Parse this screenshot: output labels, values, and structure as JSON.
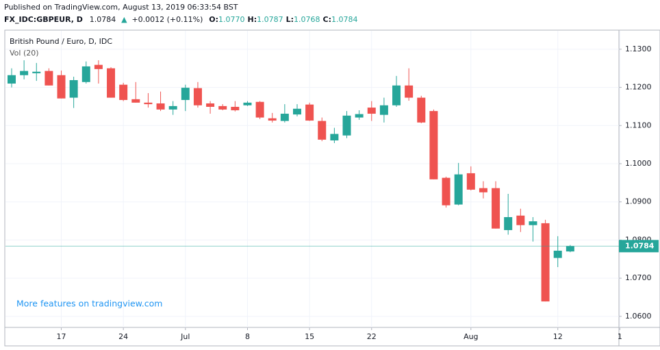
{
  "header": {
    "published": "Published on TradingView.com, August 13, 2019 06:33:54 BST",
    "symbol": "FX_IDC:GBPEUR, D",
    "last": "1.0784",
    "arrow": "▲",
    "change": "+0.0012 (+0.11%)",
    "ohlc": [
      {
        "label": "O:",
        "value": "1.0770"
      },
      {
        "label": "H:",
        "value": "1.0787"
      },
      {
        "label": "L:",
        "value": "1.0768"
      },
      {
        "label": "C:",
        "value": "1.0784"
      }
    ]
  },
  "chart_data": {
    "type": "candlestick",
    "legend": "British Pound / Euro, D, IDC",
    "indicator": "Vol (20)",
    "annotation": "More features on tradingview.com",
    "up_color": "#26a69a",
    "down_color": "#ef5350",
    "categories": [
      null,
      null,
      null,
      null,
      "17",
      null,
      null,
      null,
      null,
      "24",
      null,
      null,
      null,
      null,
      "Jul",
      null,
      null,
      null,
      null,
      "8",
      null,
      null,
      null,
      null,
      "15",
      null,
      null,
      null,
      null,
      "22",
      null,
      null,
      null,
      null,
      null,
      null,
      null,
      "Aug",
      null,
      null,
      null,
      null,
      null,
      null,
      "12",
      null,
      null,
      null,
      null,
      "1"
    ],
    "open": [
      1.121,
      1.1232,
      1.1237,
      1.1243,
      1.1232,
      1.1173,
      1.1214,
      1.1259,
      1.125,
      1.1207,
      1.1169,
      1.116,
      1.1158,
      1.1142,
      1.1167,
      1.1198,
      1.1158,
      1.1151,
      1.1149,
      1.1153,
      1.1162,
      1.1119,
      1.1112,
      1.1129,
      1.1155,
      1.1112,
      1.1061,
      1.1074,
      1.1121,
      1.1147,
      1.1128,
      1.1153,
      1.1205,
      1.1173,
      1.1138,
      1.0963,
      1.0893,
      1.0975,
      1.0936,
      1.0936,
      1.0826,
      1.0864,
      1.0839,
      1.0844,
      1.0753,
      1.077,
      null,
      null,
      null,
      null
    ],
    "high": [
      1.125,
      1.1271,
      1.1264,
      1.125,
      1.1244,
      1.1228,
      1.1268,
      1.1271,
      1.1253,
      1.1212,
      1.1214,
      1.1185,
      1.1189,
      1.1164,
      1.1207,
      1.1214,
      1.1164,
      1.1156,
      1.1164,
      1.1164,
      1.1164,
      1.1133,
      1.1156,
      1.1156,
      1.116,
      1.1121,
      1.1094,
      1.1138,
      1.114,
      1.1164,
      1.1173,
      1.123,
      1.125,
      1.1178,
      1.1142,
      1.0966,
      1.1002,
      1.0993,
      1.0954,
      1.0954,
      1.0921,
      1.0882,
      1.086,
      1.0853,
      1.081,
      1.0787,
      null,
      null,
      null,
      null
    ],
    "low": [
      1.12,
      1.1221,
      1.1217,
      1.1205,
      1.1171,
      1.1146,
      1.121,
      1.121,
      1.1173,
      1.1164,
      1.116,
      1.1147,
      1.1138,
      1.1128,
      1.1138,
      1.1147,
      1.1131,
      1.114,
      1.1137,
      1.1151,
      1.1117,
      1.1108,
      1.1108,
      1.1124,
      1.1112,
      1.1059,
      1.1054,
      1.1067,
      1.1115,
      1.1112,
      1.1108,
      1.1149,
      1.1165,
      1.1106,
      1.0959,
      1.0885,
      1.0891,
      1.093,
      1.0909,
      1.083,
      1.0814,
      1.0821,
      1.0796,
      1.0639,
      1.0729,
      1.0768,
      null,
      null,
      null,
      null
    ],
    "close": [
      1.1232,
      1.1243,
      1.1241,
      1.1205,
      1.1171,
      1.1219,
      1.1255,
      1.1248,
      1.1173,
      1.1167,
      1.116,
      1.1156,
      1.1142,
      1.1151,
      1.1199,
      1.1153,
      1.1149,
      1.1142,
      1.114,
      1.116,
      1.1121,
      1.1113,
      1.1131,
      1.1144,
      1.1113,
      1.1063,
      1.1078,
      1.1126,
      1.113,
      1.1131,
      1.1153,
      1.1205,
      1.1173,
      1.1108,
      1.0959,
      1.0891,
      1.0972,
      1.0932,
      1.0925,
      1.083,
      1.086,
      1.0839,
      1.0849,
      1.0639,
      1.0772,
      1.0784,
      null,
      null,
      null,
      null
    ],
    "last_price": {
      "value": 1.0784,
      "label": "1.0784"
    },
    "ylim": [
      1.0571,
      1.135
    ],
    "yticks": [
      {
        "value": 1.06,
        "label": "1.0600"
      },
      {
        "value": 1.07,
        "label": "1.0700"
      },
      {
        "value": 1.08,
        "label": "1.0800"
      },
      {
        "value": 1.09,
        "label": "1.0900"
      },
      {
        "value": 1.1,
        "label": "1.1000"
      },
      {
        "value": 1.11,
        "label": "1.1100"
      },
      {
        "value": 1.12,
        "label": "1.1200"
      },
      {
        "value": 1.13,
        "label": "1.1300"
      }
    ],
    "grid": true
  }
}
